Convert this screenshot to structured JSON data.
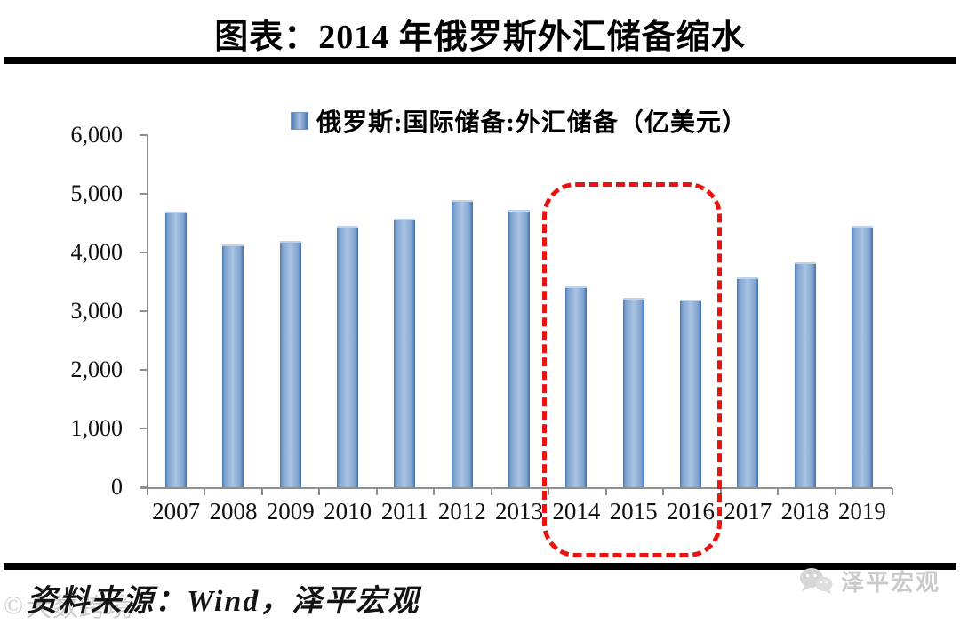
{
  "header": {
    "title": "图表：2014 年俄罗斯外汇储备缩水"
  },
  "legend": {
    "label": "俄罗斯:国际储备:外汇储备（亿美元）"
  },
  "chart_data": {
    "type": "bar",
    "title": "图表：2014 年俄罗斯外汇储备缩水",
    "legend": [
      "俄罗斯:国际储备:外汇储备（亿美元）"
    ],
    "legend_position": "top",
    "categories": [
      "2007",
      "2008",
      "2009",
      "2010",
      "2011",
      "2012",
      "2013",
      "2014",
      "2015",
      "2016",
      "2017",
      "2018",
      "2019"
    ],
    "values": [
      4660,
      4110,
      4160,
      4430,
      4540,
      4860,
      4690,
      3390,
      3190,
      3170,
      3550,
      3810,
      4430
    ],
    "xlabel": "",
    "ylabel": "",
    "ylim": [
      0,
      6000
    ],
    "y_ticks": [
      0,
      1000,
      2000,
      3000,
      4000,
      5000,
      6000
    ],
    "y_tick_labels": [
      "0",
      "1,000",
      "2,000",
      "3,000",
      "4,000",
      "5,000",
      "6,000"
    ],
    "grid": false,
    "bar_color": "#4f81bd",
    "bar_gradient": [
      "#4a78b1",
      "#a9c3e3",
      "#3f6fae"
    ],
    "axis_color": "#909090",
    "annotations": [
      {
        "type": "dashed-box",
        "color": "#ea1310",
        "categories": [
          "2014",
          "2015",
          "2016"
        ],
        "meaning": "highlight of shrinking reserves period"
      }
    ]
  },
  "footer": {
    "source": "资料来源：Wind，泽平宏观",
    "watermark": "大数跨境",
    "watermark_mark": "©",
    "brand": "泽平宏观"
  }
}
